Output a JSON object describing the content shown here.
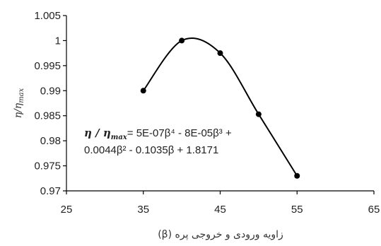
{
  "chart_data": {
    "type": "scatter",
    "title": "",
    "xlabel": "زاویه ورودی و خروجی پره (β)",
    "ylabel": "η/ηmax",
    "xlim": [
      25,
      65
    ],
    "ylim": [
      0.97,
      1.005
    ],
    "x_ticks": [
      "25",
      "35",
      "45",
      "55",
      "65"
    ],
    "y_ticks": [
      "0.97",
      "0.975",
      "0.98",
      "0.985",
      "0.99",
      "0.995",
      "1",
      "1.005"
    ],
    "grid": false,
    "legend": "none",
    "series": [
      {
        "points": [
          {
            "x": 35,
            "y": 0.99
          },
          {
            "x": 40,
            "y": 1.0
          },
          {
            "x": 45,
            "y": 0.9975
          },
          {
            "x": 50,
            "y": 0.9853
          },
          {
            "x": 55,
            "y": 0.973
          }
        ],
        "trendline": "polynomial-4"
      }
    ],
    "equation": {
      "line1_prefix": "η / η",
      "line1_sub": "max",
      "line1_rest": "= 5E-07β⁴ - 8E-05β³ +",
      "line2": "0.0044β² - 0.1035β + 1.8171"
    }
  }
}
